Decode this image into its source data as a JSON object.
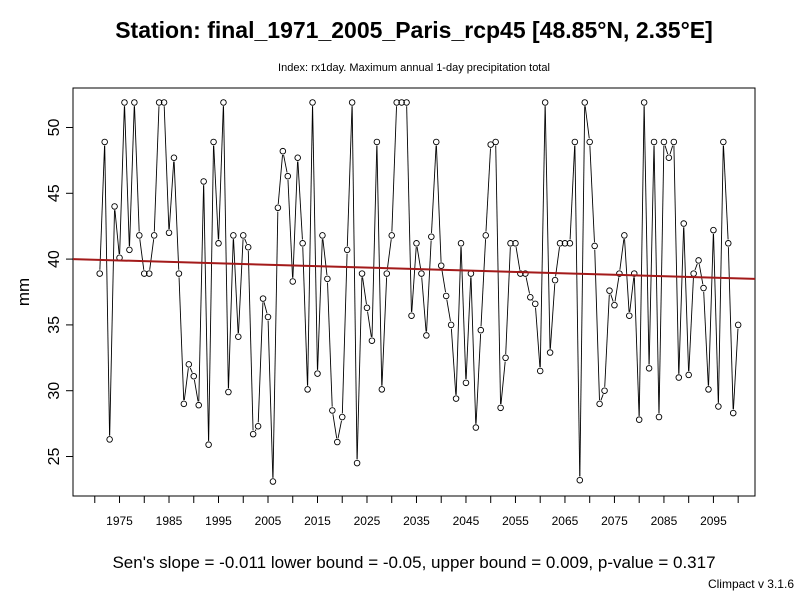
{
  "chart_data": {
    "type": "line",
    "title": "Station: final_1971_2005_Paris_rcp45 [48.85°N, 2.35°E]",
    "subtitle": "Index: rx1day. Maximum annual 1-day precipitation total",
    "xlabel": "",
    "ylabel": "mm",
    "xlim": [
      1965.6,
      2103.4
    ],
    "ylim": [
      22.0,
      53.0
    ],
    "x_ticks": [
      1975,
      1985,
      1995,
      2005,
      2015,
      2025,
      2035,
      2045,
      2055,
      2065,
      2075,
      2085,
      2095
    ],
    "y_ticks": [
      25,
      30,
      35,
      40,
      45,
      50
    ],
    "grid": false,
    "legend": "none",
    "colors": {
      "series": "#000000",
      "trend": "#a31a1a",
      "axis": "#000000"
    },
    "x": [
      1971,
      1972,
      1973,
      1974,
      1975,
      1976,
      1977,
      1978,
      1979,
      1980,
      1981,
      1982,
      1983,
      1984,
      1985,
      1986,
      1987,
      1988,
      1989,
      1990,
      1991,
      1992,
      1993,
      1994,
      1995,
      1996,
      1997,
      1998,
      1999,
      2000,
      2001,
      2002,
      2003,
      2004,
      2005,
      2006,
      2007,
      2008,
      2009,
      2010,
      2011,
      2012,
      2013,
      2014,
      2015,
      2016,
      2017,
      2018,
      2019,
      2020,
      2021,
      2022,
      2023,
      2024,
      2025,
      2026,
      2027,
      2028,
      2029,
      2030,
      2031,
      2032,
      2033,
      2034,
      2035,
      2036,
      2037,
      2038,
      2039,
      2040,
      2041,
      2042,
      2043,
      2044,
      2045,
      2046,
      2047,
      2048,
      2049,
      2050,
      2051,
      2052,
      2053,
      2054,
      2055,
      2056,
      2057,
      2058,
      2059,
      2060,
      2061,
      2062,
      2063,
      2064,
      2065,
      2066,
      2067,
      2068,
      2069,
      2070,
      2071,
      2072,
      2073,
      2074,
      2075,
      2076,
      2077,
      2078,
      2079,
      2080,
      2081,
      2082,
      2083,
      2084,
      2085,
      2086,
      2087,
      2088,
      2089,
      2090,
      2091,
      2092,
      2093,
      2094,
      2095,
      2096,
      2097,
      2098,
      2099,
      2100
    ],
    "series": [
      {
        "values": [
          38.9,
          48.9,
          26.3,
          44.0,
          40.1,
          51.9,
          40.7,
          51.9,
          41.8,
          38.9,
          38.9,
          41.8,
          51.9,
          51.9,
          42.0,
          47.7,
          38.9,
          29.0,
          32.0,
          31.1,
          28.9,
          45.9,
          25.9,
          48.9,
          41.2,
          51.9,
          29.9,
          41.8,
          34.1,
          41.8,
          40.9,
          26.7,
          27.3,
          37.0,
          35.6,
          23.1,
          43.9,
          48.2,
          46.3,
          38.3,
          47.7,
          41.2,
          30.1,
          51.9,
          31.3,
          41.8,
          38.5,
          28.5,
          26.1,
          28.0,
          40.7,
          51.9,
          24.5,
          38.9,
          36.3,
          33.8,
          48.9,
          30.1,
          38.9,
          41.8,
          51.9,
          51.9,
          51.9,
          35.7,
          41.2,
          38.9,
          34.2,
          41.7,
          48.9,
          39.5,
          37.2,
          35.0,
          29.4,
          41.2,
          30.6,
          38.9,
          27.2,
          34.6,
          41.8,
          48.7,
          48.9,
          28.7,
          32.5,
          41.2,
          41.2,
          38.9,
          38.9,
          37.1,
          36.6,
          31.5,
          51.9,
          32.9,
          38.4,
          41.2,
          41.2,
          41.2,
          48.9,
          23.2,
          51.9,
          48.9,
          41.0,
          29.0,
          30.0,
          37.6,
          36.5,
          38.9,
          41.8,
          35.7,
          38.9,
          27.8,
          51.9,
          31.7,
          48.9,
          28.0,
          48.9,
          47.7,
          48.9,
          31.0,
          42.7,
          31.2,
          38.9,
          39.9,
          37.8,
          30.1,
          42.2,
          28.8,
          48.9,
          41.2,
          28.3,
          35.0
        ]
      }
    ],
    "trend_line": {
      "start": [
        1965.6,
        40.0
      ],
      "end": [
        2103.4,
        38.5
      ]
    },
    "stats_text": "Sen's slope = -0.011   lower bound = -0.05,   upper bound = 0.009,   p-value = 0.317",
    "footer": "Climpact v 3.1.6"
  }
}
